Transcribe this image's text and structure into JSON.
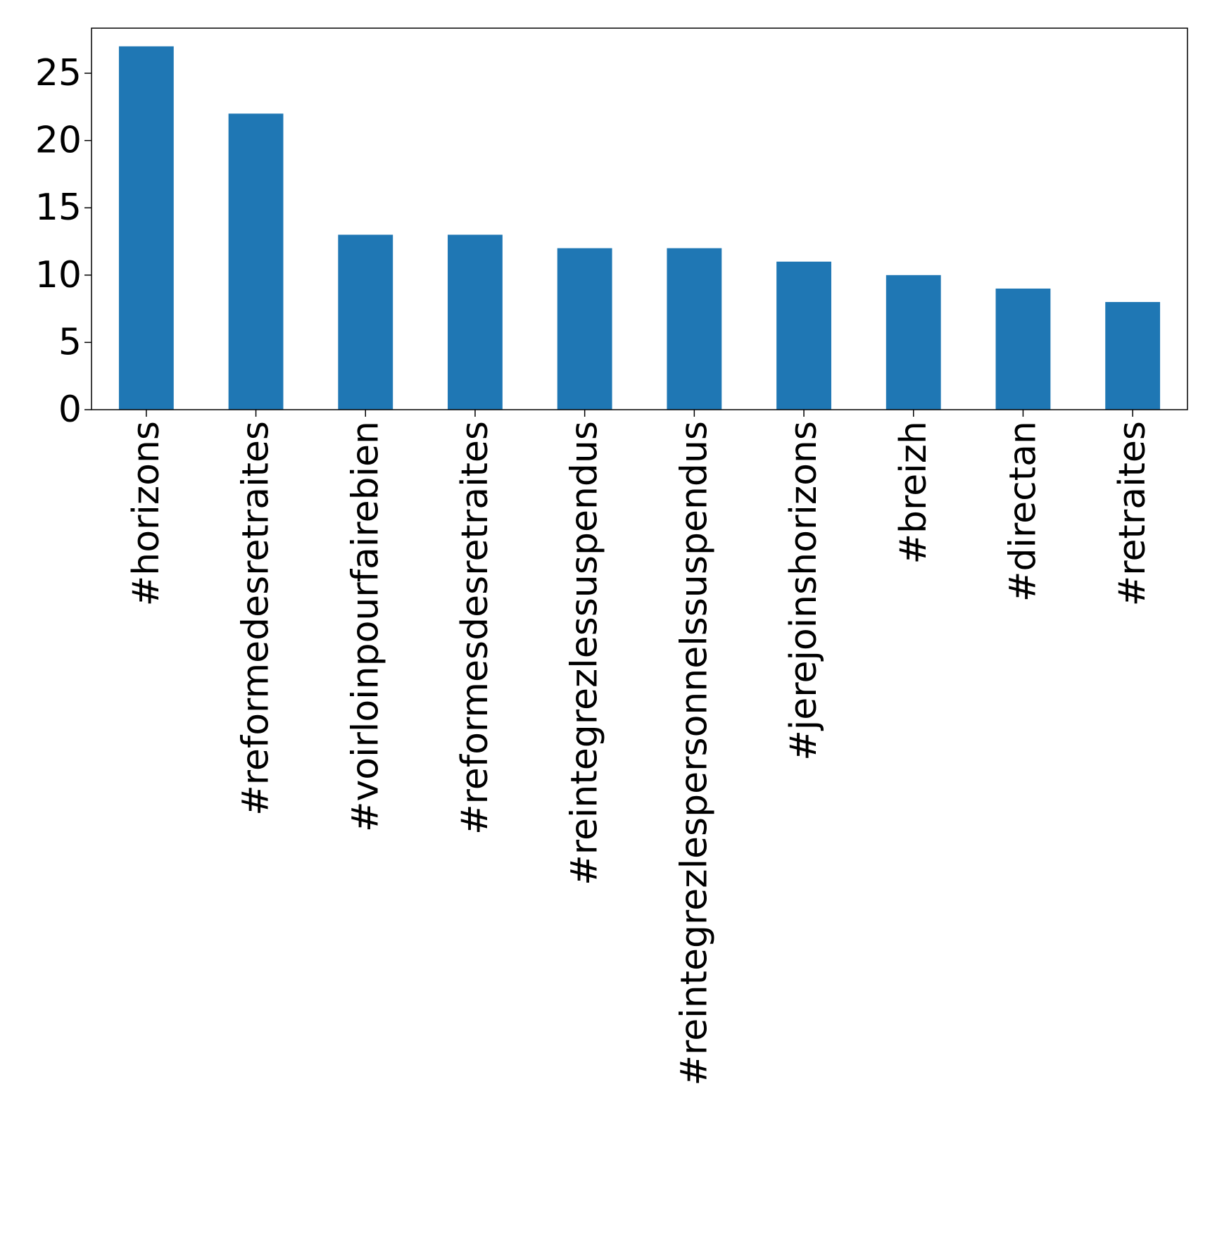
{
  "chart_data": {
    "type": "bar",
    "title": "",
    "xlabel": "",
    "ylabel": "",
    "categories": [
      "#horizons",
      "#reformedesretraites",
      "#voirloinpourfairebien",
      "#reformesdesretraites",
      "#reintegrezlessuspendus",
      "#reintegrezlespersonnelssuspendus",
      "#jerejoinshorizons",
      "#breizh",
      "#directan",
      "#retraites"
    ],
    "values": [
      27,
      22,
      13,
      13,
      12,
      12,
      11,
      10,
      9,
      8
    ],
    "ylim": [
      0,
      28.35
    ],
    "yticks": [
      0,
      5,
      10,
      15,
      20,
      25
    ],
    "bar_color": "#1f77b4",
    "grid": false,
    "legend": "none"
  }
}
